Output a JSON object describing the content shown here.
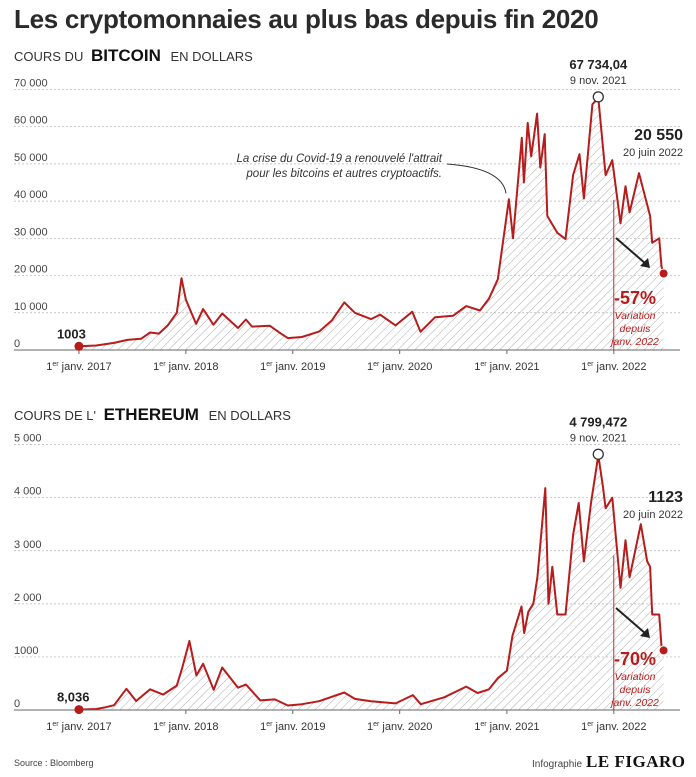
{
  "title": "Les cryptomonnaies au plus bas depuis fin 2020",
  "source": "Source : Bloomberg",
  "credit": {
    "label": "Infographie",
    "brand": "LE FIGARO"
  },
  "colors": {
    "line": "#b71c1c",
    "annotation": "#b71c1c",
    "grid": "#b5b5b5",
    "text": "#222222"
  },
  "chart_data": [
    {
      "type": "area",
      "subtitle_prefix": "COURS DU",
      "asset": "BITCOIN",
      "subtitle_suffix": "EN DOLLARS",
      "x_tick_labels": [
        "1er janv. 2017",
        "1er janv. 2018",
        "1er janv. 2019",
        "1er janv. 2020",
        "1er janv. 2021",
        "1er janv. 2022"
      ],
      "x_tick_dates": [
        "2017-01-01",
        "2018-01-01",
        "2019-01-01",
        "2020-01-01",
        "2021-01-01",
        "2022-01-01"
      ],
      "y_ticks": [
        0,
        10000,
        20000,
        30000,
        40000,
        50000,
        60000,
        70000
      ],
      "y_tick_labels": [
        "0",
        "10 000",
        "20 000",
        "30 000",
        "40 000",
        "50 000",
        "60 000",
        "70 000"
      ],
      "ylim": [
        0,
        72000
      ],
      "xlim": [
        "2016-10-01",
        "2022-08-15"
      ],
      "series": [
        {
          "points": [
            [
              "2017-01-01",
              1003
            ],
            [
              "2017-03-01",
              1200
            ],
            [
              "2017-05-01",
              1900
            ],
            [
              "2017-06-15",
              2700
            ],
            [
              "2017-08-01",
              3000
            ],
            [
              "2017-09-01",
              4700
            ],
            [
              "2017-10-01",
              4400
            ],
            [
              "2017-11-01",
              6700
            ],
            [
              "2017-12-01",
              10000
            ],
            [
              "2017-12-17",
              19300
            ],
            [
              "2018-01-01",
              13500
            ],
            [
              "2018-02-05",
              7000
            ],
            [
              "2018-03-01",
              11000
            ],
            [
              "2018-04-05",
              6800
            ],
            [
              "2018-05-05",
              9800
            ],
            [
              "2018-06-28",
              5900
            ],
            [
              "2018-07-25",
              8200
            ],
            [
              "2018-08-15",
              6300
            ],
            [
              "2018-10-15",
              6500
            ],
            [
              "2018-11-20",
              4500
            ],
            [
              "2018-12-15",
              3200
            ],
            [
              "2019-02-01",
              3500
            ],
            [
              "2019-04-02",
              5000
            ],
            [
              "2019-05-15",
              8000
            ],
            [
              "2019-06-26",
              12800
            ],
            [
              "2019-08-01",
              10000
            ],
            [
              "2019-09-25",
              8300
            ],
            [
              "2019-10-26",
              9500
            ],
            [
              "2019-12-18",
              6600
            ],
            [
              "2020-02-13",
              10300
            ],
            [
              "2020-03-12",
              4900
            ],
            [
              "2020-05-01",
              8800
            ],
            [
              "2020-07-01",
              9200
            ],
            [
              "2020-08-15",
              11800
            ],
            [
              "2020-10-01",
              10600
            ],
            [
              "2020-11-01",
              13800
            ],
            [
              "2020-12-01",
              19000
            ],
            [
              "2021-01-08",
              40500
            ],
            [
              "2021-01-22",
              30000
            ],
            [
              "2021-02-21",
              57000
            ],
            [
              "2021-02-28",
              45000
            ],
            [
              "2021-03-13",
              61000
            ],
            [
              "2021-03-25",
              52000
            ],
            [
              "2021-04-14",
              63500
            ],
            [
              "2021-04-25",
              49000
            ],
            [
              "2021-05-10",
              58000
            ],
            [
              "2021-05-19",
              36000
            ],
            [
              "2021-06-22",
              31500
            ],
            [
              "2021-07-20",
              29800
            ],
            [
              "2021-08-15",
              47000
            ],
            [
              "2021-09-06",
              52600
            ],
            [
              "2021-09-21",
              40700
            ],
            [
              "2021-10-20",
              66000
            ],
            [
              "2021-11-09",
              67734.04
            ],
            [
              "2021-12-04",
              47000
            ],
            [
              "2021-12-27",
              51000
            ],
            [
              "2022-01-24",
              34000
            ],
            [
              "2022-02-10",
              44000
            ],
            [
              "2022-02-24",
              37000
            ],
            [
              "2022-03-28",
              47500
            ],
            [
              "2022-04-25",
              39000
            ],
            [
              "2022-05-05",
              36000
            ],
            [
              "2022-05-12",
              28800
            ],
            [
              "2022-06-05",
              30000
            ],
            [
              "2022-06-13",
              22400
            ],
            [
              "2022-06-20",
              20550
            ]
          ]
        }
      ],
      "start_point": {
        "date": "2017-01-01",
        "value": 1003,
        "label": "1003"
      },
      "peak": {
        "date": "2021-11-09",
        "value": 67734.04,
        "value_label": "67 734,04",
        "date_label": "9 nov. 2021"
      },
      "last": {
        "date": "2022-06-20",
        "value": 20550,
        "value_label": "20 550",
        "date_label": "20 juin 2022"
      },
      "variation": {
        "value": "-57%",
        "line1": "Variation",
        "line2": "depuis",
        "line3": "janv. 2022"
      },
      "annotation": {
        "line1": "La crise du Covid-19 a renouvelé l'attrait",
        "line2": "pour les bitcoins et autres cryptoactifs."
      }
    },
    {
      "type": "area",
      "subtitle_prefix": "COURS DE L'",
      "asset": "ETHEREUM",
      "subtitle_suffix": "EN DOLLARS",
      "x_tick_labels": [
        "1er janv. 2017",
        "1er janv. 2018",
        "1er janv. 2019",
        "1er janv. 2020",
        "1er janv. 2021",
        "1er janv. 2022"
      ],
      "x_tick_dates": [
        "2017-01-01",
        "2018-01-01",
        "2019-01-01",
        "2020-01-01",
        "2021-01-01",
        "2022-01-01"
      ],
      "y_ticks": [
        0,
        1000,
        2000,
        3000,
        4000,
        5000
      ],
      "y_tick_labels": [
        "0",
        "1000",
        "2 000",
        "3 000",
        "4 000",
        "5 000"
      ],
      "ylim": [
        0,
        5200
      ],
      "xlim": [
        "2016-10-01",
        "2022-08-15"
      ],
      "series": [
        {
          "points": [
            [
              "2017-01-01",
              8.036
            ],
            [
              "2017-03-01",
              18
            ],
            [
              "2017-04-01",
              50
            ],
            [
              "2017-05-01",
              90
            ],
            [
              "2017-06-12",
              400
            ],
            [
              "2017-07-15",
              170
            ],
            [
              "2017-09-01",
              390
            ],
            [
              "2017-10-15",
              290
            ],
            [
              "2017-12-01",
              460
            ],
            [
              "2017-12-20",
              800
            ],
            [
              "2018-01-13",
              1300
            ],
            [
              "2018-02-06",
              650
            ],
            [
              "2018-03-01",
              870
            ],
            [
              "2018-04-06",
              380
            ],
            [
              "2018-05-05",
              800
            ],
            [
              "2018-06-28",
              420
            ],
            [
              "2018-07-25",
              480
            ],
            [
              "2018-09-12",
              180
            ],
            [
              "2018-11-01",
              200
            ],
            [
              "2018-12-15",
              85
            ],
            [
              "2019-02-01",
              110
            ],
            [
              "2019-04-01",
              165
            ],
            [
              "2019-06-26",
              330
            ],
            [
              "2019-08-01",
              210
            ],
            [
              "2019-09-25",
              165
            ],
            [
              "2019-12-18",
              125
            ],
            [
              "2020-02-15",
              280
            ],
            [
              "2020-03-13",
              110
            ],
            [
              "2020-06-01",
              240
            ],
            [
              "2020-08-15",
              440
            ],
            [
              "2020-09-23",
              320
            ],
            [
              "2020-11-01",
              390
            ],
            [
              "2020-12-01",
              600
            ],
            [
              "2021-01-01",
              740
            ],
            [
              "2021-01-20",
              1400
            ],
            [
              "2021-02-20",
              1950
            ],
            [
              "2021-03-01",
              1450
            ],
            [
              "2021-03-15",
              1850
            ],
            [
              "2021-04-01",
              2000
            ],
            [
              "2021-04-15",
              2500
            ],
            [
              "2021-05-12",
              4180
            ],
            [
              "2021-05-23",
              2000
            ],
            [
              "2021-06-05",
              2700
            ],
            [
              "2021-06-22",
              1800
            ],
            [
              "2021-07-20",
              1800
            ],
            [
              "2021-08-15",
              3300
            ],
            [
              "2021-09-03",
              3900
            ],
            [
              "2021-09-21",
              2800
            ],
            [
              "2021-10-15",
              3900
            ],
            [
              "2021-11-09",
              4799.472
            ],
            [
              "2021-11-25",
              4200
            ],
            [
              "2021-12-04",
              3800
            ],
            [
              "2021-12-27",
              4000
            ],
            [
              "2022-01-24",
              2300
            ],
            [
              "2022-02-10",
              3200
            ],
            [
              "2022-02-24",
              2500
            ],
            [
              "2022-04-03",
              3500
            ],
            [
              "2022-04-25",
              2800
            ],
            [
              "2022-05-05",
              2700
            ],
            [
              "2022-05-12",
              1800
            ],
            [
              "2022-06-05",
              1800
            ],
            [
              "2022-06-13",
              1200
            ],
            [
              "2022-06-20",
              1123
            ]
          ]
        }
      ],
      "start_point": {
        "date": "2017-01-01",
        "value": 8.036,
        "label": "8,036"
      },
      "peak": {
        "date": "2021-11-09",
        "value": 4799.472,
        "value_label": "4 799,472",
        "date_label": "9 nov. 2021"
      },
      "last": {
        "date": "2022-06-20",
        "value": 1123,
        "value_label": "1123",
        "date_label": "20 juin 2022"
      },
      "variation": {
        "value": "-70%",
        "line1": "Variation",
        "line2": "depuis",
        "line3": "janv. 2022"
      }
    }
  ]
}
